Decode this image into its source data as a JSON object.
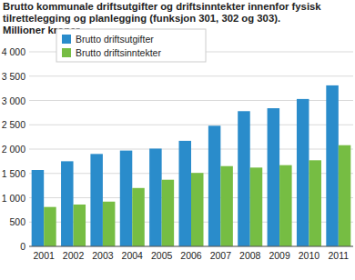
{
  "chart_data": {
    "type": "bar",
    "title": "Brutto kommunale driftsutgifter og driftsinntekter innenfor fysisk tilrettelegging og planlegging (funksjon 301, 302 og 303).",
    "subtitle": "Millioner kroner",
    "categories": [
      "2001",
      "2002",
      "2003",
      "2004",
      "2005",
      "2006",
      "2007",
      "2008",
      "2009",
      "2010",
      "2011"
    ],
    "series": [
      {
        "name": "Brutto driftsutgifter",
        "color": "#2a8ccb",
        "values": [
          1570,
          1750,
          1900,
          1970,
          2010,
          2170,
          2480,
          2780,
          2840,
          3030,
          3310
        ]
      },
      {
        "name": "Brutto driftsinntekter",
        "color": "#76bd43",
        "values": [
          810,
          860,
          920,
          1200,
          1370,
          1510,
          1650,
          1620,
          1670,
          1770,
          2080
        ]
      }
    ],
    "ylim": [
      0,
      4000
    ],
    "yticks": [
      0,
      500,
      {
        "value": 1000,
        "label": "1 000"
      },
      {
        "value": 1500,
        "label": "1 500"
      },
      {
        "value": 2000,
        "label": "2 000"
      },
      {
        "value": 2500,
        "label": "2 500"
      },
      {
        "value": 3000,
        "label": "3 000"
      },
      {
        "value": 3500,
        "label": "3 500"
      },
      {
        "value": 4000,
        "label": "4 000"
      }
    ],
    "grid": true,
    "legend": "upper left"
  }
}
